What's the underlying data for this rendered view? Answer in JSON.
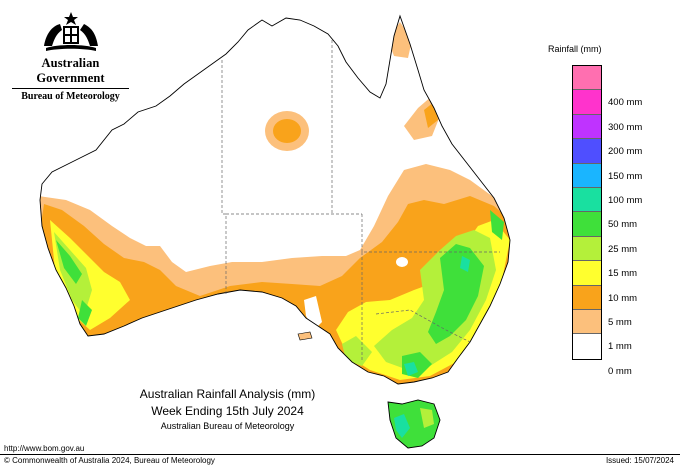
{
  "header": {
    "government": "Australian Government",
    "bureau": "Bureau of Meteorology"
  },
  "legend": {
    "title": "Rainfall (mm)",
    "colors": [
      "#ff6fb0",
      "#ff33cc",
      "#bf33ff",
      "#4f4fff",
      "#1ab5ff",
      "#19e0a0",
      "#3fe03a",
      "#b4f03a",
      "#ffff2e",
      "#f9a31b",
      "#fcc07c",
      "#ffffff"
    ],
    "labels": [
      "400 mm",
      "300 mm",
      "200 mm",
      "150 mm",
      "100 mm",
      "50 mm",
      "25 mm",
      "15 mm",
      "10 mm",
      "5 mm",
      "1 mm",
      "0 mm"
    ]
  },
  "caption": {
    "title": "Australian Rainfall Analysis (mm)",
    "period": "Week Ending 15th July 2024",
    "agency": "Australian Bureau of Meteorology"
  },
  "footer": {
    "url": "http://www.bom.gov.au",
    "copyright": "© Commonwealth of Australia 2024, Bureau of Meteorology",
    "issued": "Issued: 15/07/2024"
  },
  "map_colors": {
    "land": "#ffffff",
    "coast": "#000000",
    "border": "#666666",
    "rain_1mm": "#fcc07c",
    "rain_5mm": "#f9a31b",
    "rain_10mm": "#ffff2e",
    "rain_15mm": "#b4f03a",
    "rain_25mm": "#3fe03a",
    "rain_50mm": "#19e0a0"
  }
}
